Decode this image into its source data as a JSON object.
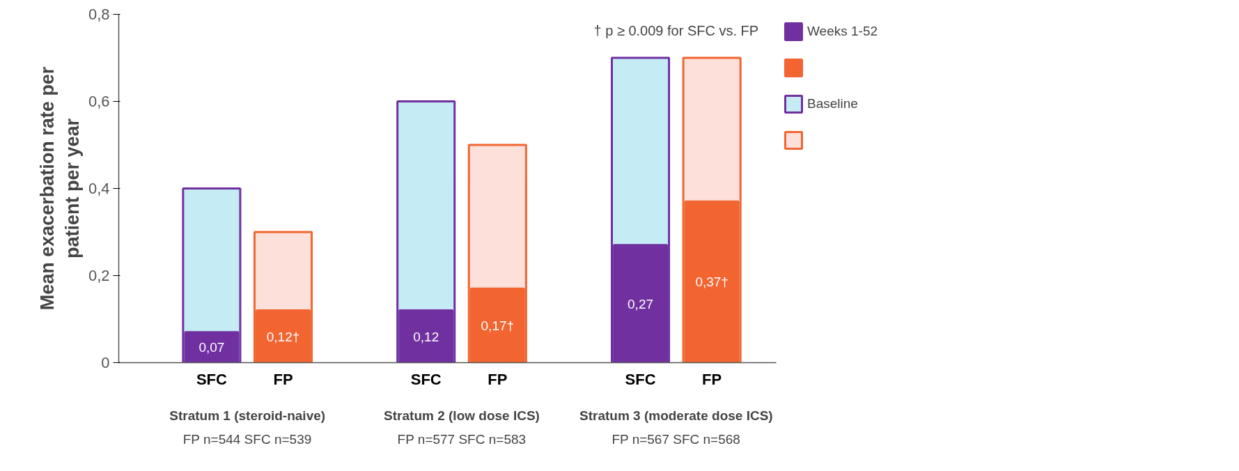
{
  "chart_data": {
    "type": "bar",
    "ylabel": "Mean exacerbation rate per\npatient per year",
    "categories": [
      "SFC",
      "FP",
      "SFC",
      "FP",
      "SFC",
      "FP"
    ],
    "series": [
      {
        "name": "Weeks 1-52",
        "colors": [
          "#7030a0",
          "#f26531",
          "#7030a0",
          "#f26531",
          "#7030a0",
          "#f26531"
        ],
        "values": [
          0.07,
          0.12,
          0.12,
          0.17,
          0.27,
          0.37
        ],
        "value_labels": [
          "0,07",
          "0,12†",
          "0,12",
          "0,17†",
          "0,27",
          "0,37†"
        ]
      },
      {
        "name": "Baseline",
        "colors": [
          "#c5ecf4",
          "#fde0d9",
          "#c5ecf4",
          "#fde0d9",
          "#c5ecf4",
          "#fde0d9"
        ],
        "values": [
          0.4,
          0.3,
          0.6,
          0.5,
          0.7,
          0.7
        ]
      }
    ],
    "ylim": [
      0,
      0.8
    ],
    "yticks": [
      0,
      {
        "value": 0.2,
        "label": "0,2"
      },
      {
        "value": 0.4,
        "label": "0,4"
      },
      {
        "value": 0.6,
        "label": "0,6"
      },
      {
        "value": 0.8,
        "label": "0,8"
      }
    ],
    "grid": false,
    "legend": "right",
    "annotations": [
      "† p ≥ 0.009 for SFC vs. FP",
      "Stratum 1 (steroid-naive)",
      "FP n=544 SFC n=539",
      "Stratum 2 (low dose ICS)",
      "FP n=577 SFC n=583",
      "Stratum 3 (moderate dose ICS)",
      "FP n=567 SFC n=568"
    ]
  }
}
